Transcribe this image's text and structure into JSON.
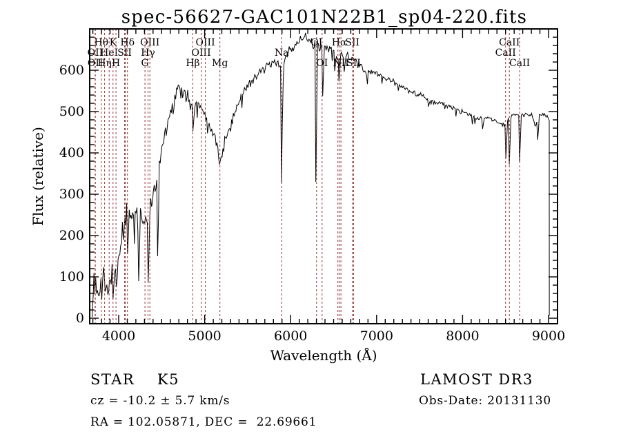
{
  "title": "spec-56627-GAC101N22B1_sp04-220.fits",
  "footer": {
    "class_label": "STAR    K5",
    "survey": "LAMOST DR3",
    "cz": "cz = -10.2 ± 5.7 km/s",
    "obs_date": "Obs-Date: 20131130",
    "radec": "RA = 102.05871, DEC =  22.69661"
  },
  "marker_color": "#9a3432",
  "spectrum_color": "#000000",
  "spectral_lines": [
    {
      "label": "OII",
      "wavelength": 3726,
      "row": 2
    },
    {
      "label": "OII",
      "wavelength": 3729,
      "row": 3
    },
    {
      "label": "Hθ",
      "wavelength": 3798,
      "row": 1
    },
    {
      "label": "Hη",
      "wavelength": 3836,
      "row": 3
    },
    {
      "label": "HeI",
      "wavelength": 3889,
      "row": 2
    },
    {
      "label": "K",
      "wavelength": 3934,
      "row": 1
    },
    {
      "label": "H",
      "wavelength": 3969,
      "row": 3
    },
    {
      "label": "SII",
      "wavelength": 4069,
      "row": 2
    },
    {
      "label": null,
      "wavelength": 4076,
      "row": 0
    },
    {
      "label": "Hδ",
      "wavelength": 4102,
      "row": 1
    },
    {
      "label": "G",
      "wavelength": 4306,
      "row": 3
    },
    {
      "label": "Hγ",
      "wavelength": 4341,
      "row": 2
    },
    {
      "label": "OIII",
      "wavelength": 4363,
      "row": 1
    },
    {
      "label": "Hβ",
      "wavelength": 4863,
      "row": 3
    },
    {
      "label": "OIII",
      "wavelength": 4960,
      "row": 2
    },
    {
      "label": "OIII",
      "wavelength": 5008,
      "row": 1
    },
    {
      "label": "Mg",
      "wavelength": 5177,
      "row": 3
    },
    {
      "label": "Na",
      "wavelength": 5896,
      "row": 2
    },
    {
      "label": "OI",
      "wavelength": 6302,
      "row": 1
    },
    {
      "label": "OI",
      "wavelength": 6366,
      "row": 3
    },
    {
      "label": null,
      "wavelength": 6550,
      "row": 0
    },
    {
      "label": "Hα",
      "wavelength": 6565,
      "row": 1
    },
    {
      "label": "NII",
      "wavelength": 6585,
      "row": 3
    },
    {
      "label": "SII",
      "wavelength": 6718,
      "row": 1
    },
    {
      "label": "SII",
      "wavelength": 6733,
      "row": 3
    },
    {
      "label": "CaII",
      "wavelength": 8500,
      "row": 2
    },
    {
      "label": "CaII",
      "wavelength": 8544,
      "row": 1
    },
    {
      "label": "CaII",
      "wavelength": 8664,
      "row": 3
    }
  ],
  "chart_data": {
    "type": "line",
    "title": "spec-56627-GAC101N22B1_sp04-220.fits",
    "xlabel": "Wavelength (Å)",
    "ylabel": "Flux (relative)",
    "xlim": [
      3663,
      9104
    ],
    "ylim": [
      -13,
      700
    ],
    "x_ticks": [
      4000,
      5000,
      6000,
      7000,
      8000,
      9000
    ],
    "y_ticks": [
      0,
      100,
      200,
      300,
      400,
      500,
      600
    ],
    "x_minor_step": 100,
    "y_minor_step": 20,
    "spectrum_start": 3693,
    "spectrum_end": 9008,
    "envelope": [
      [
        3693,
        3
      ],
      [
        3700,
        35
      ],
      [
        3712,
        70
      ],
      [
        3725,
        85
      ],
      [
        3740,
        90
      ],
      [
        3758,
        72
      ],
      [
        3775,
        55
      ],
      [
        3795,
        75
      ],
      [
        3812,
        95
      ],
      [
        3830,
        105
      ],
      [
        3846,
        95
      ],
      [
        3862,
        75
      ],
      [
        3878,
        65
      ],
      [
        3892,
        82
      ],
      [
        3908,
        95
      ],
      [
        3922,
        105
      ],
      [
        3945,
        110
      ],
      [
        3970,
        122
      ],
      [
        4000,
        150
      ],
      [
        4030,
        185
      ],
      [
        4060,
        225
      ],
      [
        4090,
        248
      ],
      [
        4120,
        255
      ],
      [
        4150,
        260
      ],
      [
        4180,
        250
      ],
      [
        4210,
        255
      ],
      [
        4240,
        248
      ],
      [
        4270,
        240
      ],
      [
        4300,
        225
      ],
      [
        4330,
        240
      ],
      [
        4360,
        258
      ],
      [
        4390,
        285
      ],
      [
        4420,
        315
      ],
      [
        4450,
        335
      ],
      [
        4480,
        370
      ],
      [
        4510,
        418
      ],
      [
        4540,
        450
      ],
      [
        4570,
        470
      ],
      [
        4600,
        495
      ],
      [
        4630,
        520
      ],
      [
        4660,
        545
      ],
      [
        4690,
        560
      ],
      [
        4720,
        555
      ],
      [
        4750,
        546
      ],
      [
        4780,
        540
      ],
      [
        4810,
        534
      ],
      [
        4840,
        515
      ],
      [
        4870,
        502
      ],
      [
        4900,
        520
      ],
      [
        4930,
        516
      ],
      [
        4960,
        510
      ],
      [
        4990,
        500
      ],
      [
        5020,
        486
      ],
      [
        5050,
        470
      ],
      [
        5080,
        455
      ],
      [
        5110,
        440
      ],
      [
        5140,
        420
      ],
      [
        5170,
        392
      ],
      [
        5200,
        400
      ],
      [
        5230,
        420
      ],
      [
        5260,
        440
      ],
      [
        5290,
        460
      ],
      [
        5320,
        480
      ],
      [
        5350,
        500
      ],
      [
        5380,
        515
      ],
      [
        5410,
        530
      ],
      [
        5450,
        548
      ],
      [
        5500,
        562
      ],
      [
        5550,
        575
      ],
      [
        5600,
        585
      ],
      [
        5650,
        595
      ],
      [
        5700,
        605
      ],
      [
        5750,
        612
      ],
      [
        5800,
        620
      ],
      [
        5850,
        617
      ],
      [
        5880,
        606
      ],
      [
        5900,
        602
      ],
      [
        5930,
        625
      ],
      [
        5960,
        638
      ],
      [
        6000,
        650
      ],
      [
        6050,
        662
      ],
      [
        6100,
        672
      ],
      [
        6150,
        680
      ],
      [
        6200,
        678
      ],
      [
        6250,
        668
      ],
      [
        6300,
        660
      ],
      [
        6350,
        655
      ],
      [
        6400,
        652
      ],
      [
        6450,
        655
      ],
      [
        6500,
        648
      ],
      [
        6530,
        638
      ],
      [
        6560,
        630
      ],
      [
        6590,
        638
      ],
      [
        6620,
        635
      ],
      [
        6660,
        632
      ],
      [
        6700,
        627
      ],
      [
        6740,
        622
      ],
      [
        6780,
        615
      ],
      [
        6820,
        608
      ],
      [
        6860,
        598
      ],
      [
        6900,
        595
      ],
      [
        6950,
        600
      ],
      [
        7000,
        592
      ],
      [
        7050,
        586
      ],
      [
        7100,
        580
      ],
      [
        7150,
        576
      ],
      [
        7200,
        571
      ],
      [
        7250,
        566
      ],
      [
        7300,
        561
      ],
      [
        7350,
        556
      ],
      [
        7400,
        551
      ],
      [
        7450,
        546
      ],
      [
        7500,
        541
      ],
      [
        7550,
        536
      ],
      [
        7600,
        528
      ],
      [
        7650,
        527
      ],
      [
        7700,
        524
      ],
      [
        7750,
        520
      ],
      [
        7800,
        516
      ],
      [
        7850,
        511
      ],
      [
        7900,
        506
      ],
      [
        8000,
        499
      ],
      [
        8100,
        491
      ],
      [
        8200,
        481
      ],
      [
        8250,
        488
      ],
      [
        8300,
        485
      ],
      [
        8350,
        480
      ],
      [
        8400,
        476
      ],
      [
        8450,
        471
      ],
      [
        8480,
        465
      ],
      [
        8520,
        480
      ],
      [
        8560,
        487
      ],
      [
        8600,
        494
      ],
      [
        8640,
        490
      ],
      [
        8700,
        492
      ],
      [
        8750,
        494
      ],
      [
        8800,
        490
      ],
      [
        8850,
        470
      ],
      [
        8900,
        492
      ],
      [
        8950,
        494
      ],
      [
        9000,
        488
      ],
      [
        9008,
        480
      ]
    ],
    "absorption_spikes": [
      [
        3934,
        45
      ],
      [
        3968,
        75
      ],
      [
        4101,
        155
      ],
      [
        4233,
        90
      ],
      [
        4340,
        85
      ],
      [
        4450,
        150
      ],
      [
        4861,
        452
      ],
      [
        5171,
        372
      ],
      [
        5892,
        328
      ],
      [
        6297,
        330
      ],
      [
        6375,
        538
      ],
      [
        6510,
        598
      ],
      [
        6563,
        573
      ],
      [
        6620,
        596
      ],
      [
        7605,
        512
      ],
      [
        8230,
        458
      ],
      [
        8500,
        388
      ],
      [
        8544,
        372
      ],
      [
        8664,
        378
      ],
      [
        8870,
        432
      ]
    ],
    "noise_sigma": [
      [
        3690,
        3900,
        32
      ],
      [
        3900,
        4150,
        28
      ],
      [
        4150,
        4550,
        24
      ],
      [
        4550,
        4950,
        17
      ],
      [
        4950,
        5350,
        14
      ],
      [
        5350,
        5900,
        11
      ],
      [
        5900,
        6350,
        14
      ],
      [
        6350,
        6900,
        11
      ],
      [
        6900,
        7500,
        7
      ],
      [
        7500,
        8300,
        6
      ],
      [
        8300,
        9010,
        5
      ]
    ]
  }
}
